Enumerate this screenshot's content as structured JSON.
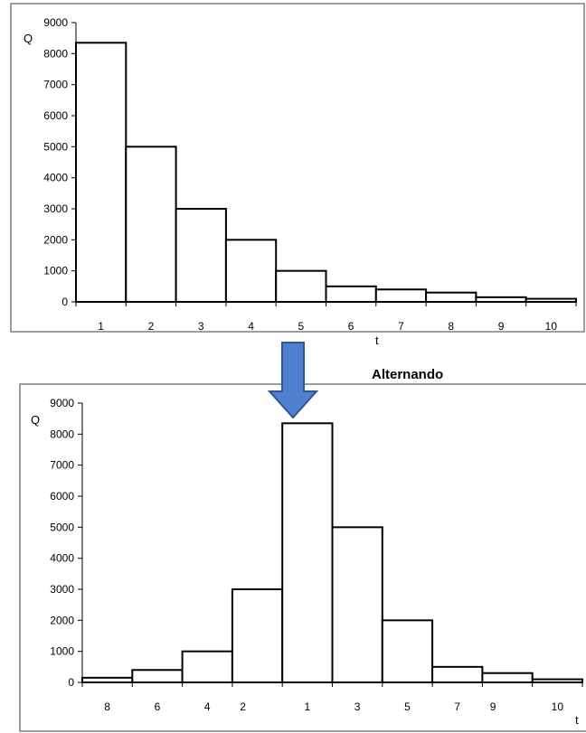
{
  "caption": "Alternando",
  "colors": {
    "arrow_fill": "#4f7fcf",
    "arrow_stroke": "#2f5597"
  },
  "chart_data": [
    {
      "type": "bar",
      "categories": [
        "1",
        "2",
        "3",
        "4",
        "5",
        "6",
        "7",
        "8",
        "9",
        "10"
      ],
      "values": [
        8350,
        5000,
        3000,
        2000,
        1000,
        500,
        400,
        300,
        150,
        100
      ],
      "ylabel": "Q",
      "xlabel": "t",
      "ylim": [
        0,
        9000
      ],
      "yticks": [
        0,
        1000,
        2000,
        3000,
        4000,
        5000,
        6000,
        7000,
        8000,
        9000
      ],
      "grid": false,
      "legend": "none"
    },
    {
      "type": "bar",
      "categories": [
        "8",
        "6",
        "4",
        "2",
        "1",
        "3",
        "5",
        "7",
        "9",
        "10"
      ],
      "values": [
        150,
        400,
        1000,
        3000,
        8350,
        5000,
        2000,
        500,
        300,
        100
      ],
      "ylabel": "Q",
      "xlabel": "t",
      "ylim": [
        0,
        9000
      ],
      "yticks": [
        0,
        1000,
        2000,
        3000,
        4000,
        5000,
        6000,
        7000,
        8000,
        9000
      ],
      "grid": false,
      "legend": "none"
    }
  ]
}
